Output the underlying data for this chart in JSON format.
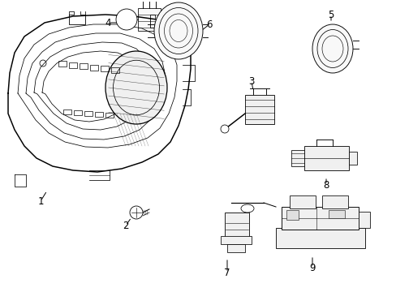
{
  "background_color": "#ffffff",
  "line_color": "#000000",
  "text_color": "#000000",
  "label_fontsize": 8.5,
  "fig_width": 4.89,
  "fig_height": 3.6,
  "dpi": 100
}
